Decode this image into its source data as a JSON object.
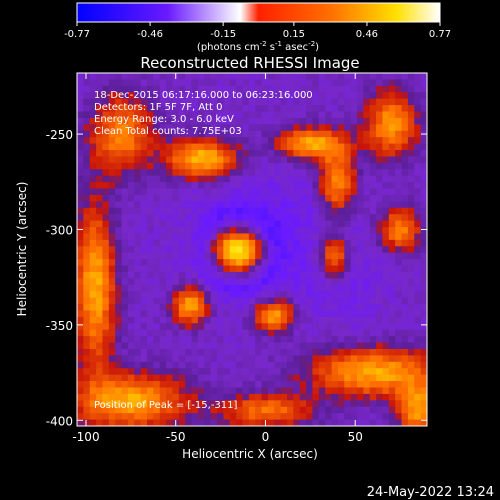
{
  "colorbar": {
    "ticks": [
      {
        "value": -0.77,
        "label": "-0.77"
      },
      {
        "value": -0.46,
        "label": "-0.46"
      },
      {
        "value": -0.15,
        "label": "-0.15"
      },
      {
        "value": 0.15,
        "label": "0.15"
      },
      {
        "value": 0.46,
        "label": "0.46"
      },
      {
        "value": 0.77,
        "label": "0.77"
      }
    ],
    "range": [
      -0.77,
      0.77
    ],
    "colormap": [
      "#0000ff",
      "#7000ff",
      "#ffffff",
      "#ff0000",
      "#ff8000",
      "#ffff00",
      "#ffffff"
    ],
    "units": "(photons cm",
    "units_sup1": "-2",
    "units_mid": " s",
    "units_sup2": "-1",
    "units_mid2": " asec",
    "units_sup3": "-2",
    "units_end": ")"
  },
  "chart_data": {
    "type": "heatmap",
    "title": "Reconstructed RHESSI Image",
    "xlabel": "Heliocentric X (arcsec)",
    "ylabel": "Heliocentric Y (arcsec)",
    "xlim": [
      -105,
      90
    ],
    "ylim": [
      -403,
      -218
    ],
    "xticks": [
      {
        "value": -100,
        "label": "-100"
      },
      {
        "value": -50,
        "label": "-50"
      },
      {
        "value": 0,
        "label": "0"
      },
      {
        "value": 50,
        "label": "50"
      }
    ],
    "yticks": [
      {
        "value": -400,
        "label": "-400"
      },
      {
        "value": -350,
        "label": "-350"
      },
      {
        "value": -300,
        "label": "-300"
      },
      {
        "value": -250,
        "label": "-250"
      }
    ],
    "annotations": [
      "18-Dec-2015 06:17:16.000 to 06:23:16.000",
      "Detectors: 1F 5F 7F, Att 0",
      "Energy Range: 3.0 - 6.0 keV",
      "Clean     Total counts: 7.75E+03"
    ],
    "peak_label": "Position of Peak = [-15,-311]",
    "sources": [
      {
        "x": -15,
        "y": -311,
        "intensity": 0.77,
        "sx": 10,
        "sy": 8
      },
      {
        "x": -35,
        "y": -263,
        "intensity": 0.52,
        "sx": 14,
        "sy": 7
      },
      {
        "x": 25,
        "y": -255,
        "intensity": 0.45,
        "sx": 13,
        "sy": 6
      },
      {
        "x": 40,
        "y": -275,
        "intensity": 0.4,
        "sx": 7,
        "sy": 12
      },
      {
        "x": -42,
        "y": -340,
        "intensity": 0.45,
        "sx": 7,
        "sy": 7
      },
      {
        "x": 5,
        "y": -345,
        "intensity": 0.47,
        "sx": 8,
        "sy": 6
      },
      {
        "x": 38,
        "y": -315,
        "intensity": 0.38,
        "sx": 6,
        "sy": 8
      },
      {
        "x": -75,
        "y": -390,
        "intensity": 0.45,
        "sx": 22,
        "sy": 10
      },
      {
        "x": -95,
        "y": -330,
        "intensity": 0.45,
        "sx": 8,
        "sy": 30
      },
      {
        "x": -80,
        "y": -250,
        "intensity": 0.35,
        "sx": 12,
        "sy": 14
      },
      {
        "x": 70,
        "y": -245,
        "intensity": 0.4,
        "sx": 10,
        "sy": 12
      },
      {
        "x": 75,
        "y": -300,
        "intensity": 0.35,
        "sx": 8,
        "sy": 8
      },
      {
        "x": 60,
        "y": -375,
        "intensity": 0.45,
        "sx": 25,
        "sy": 9
      },
      {
        "x": 85,
        "y": -395,
        "intensity": 0.4,
        "sx": 8,
        "sy": 10
      },
      {
        "x": 0,
        "y": -395,
        "intensity": 0.3,
        "sx": 18,
        "sy": 6
      }
    ],
    "negative_regions": [
      {
        "x": 0,
        "y": -305,
        "intensity": -0.35,
        "sx": 30,
        "sy": 25
      },
      {
        "x": 45,
        "y": -330,
        "intensity": -0.2,
        "sx": 15,
        "sy": 15
      }
    ]
  },
  "timestamp": "24-May-2022 13:24"
}
